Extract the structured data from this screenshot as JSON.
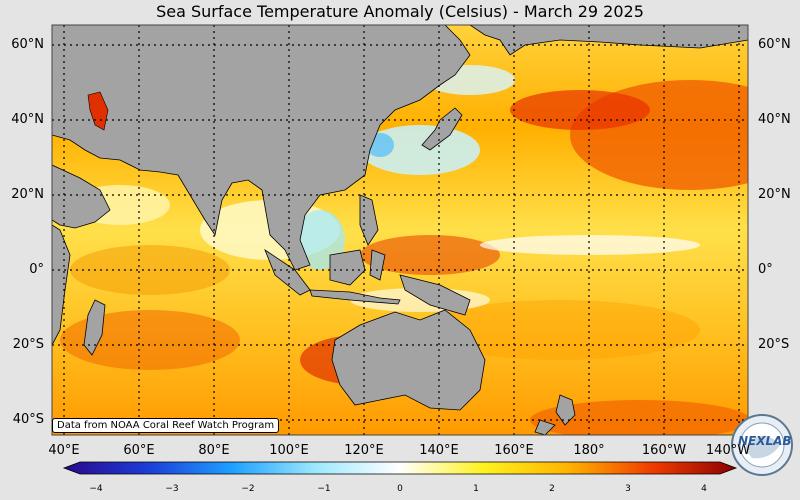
{
  "title": "Sea Surface Temperature Anomaly (Celsius) - March 29 2025",
  "credit": "Data from NOAA Coral Reef Watch Program",
  "logo_text": "NEXLAB",
  "lat_labels": [
    "60°N",
    "40°N",
    "20°N",
    "0°",
    "20°S",
    "40°S"
  ],
  "lon_labels": [
    "40°E",
    "60°E",
    "80°E",
    "100°E",
    "120°E",
    "140°E",
    "160°E",
    "180°",
    "160°W",
    "140°W"
  ],
  "colorbar": {
    "ticks": [
      "−4",
      "−3",
      "−2",
      "−1",
      "0",
      "1",
      "2",
      "3",
      "4"
    ],
    "colors": [
      "#2a0a8c",
      "#1c3cd8",
      "#1ea0ff",
      "#9ee8ff",
      "#ffffff",
      "#fff21e",
      "#ffb400",
      "#f03c00",
      "#8c0000"
    ]
  },
  "colors": {
    "land": "#a3a3a3",
    "background": "#e4e4e4",
    "grid": "#000000"
  }
}
